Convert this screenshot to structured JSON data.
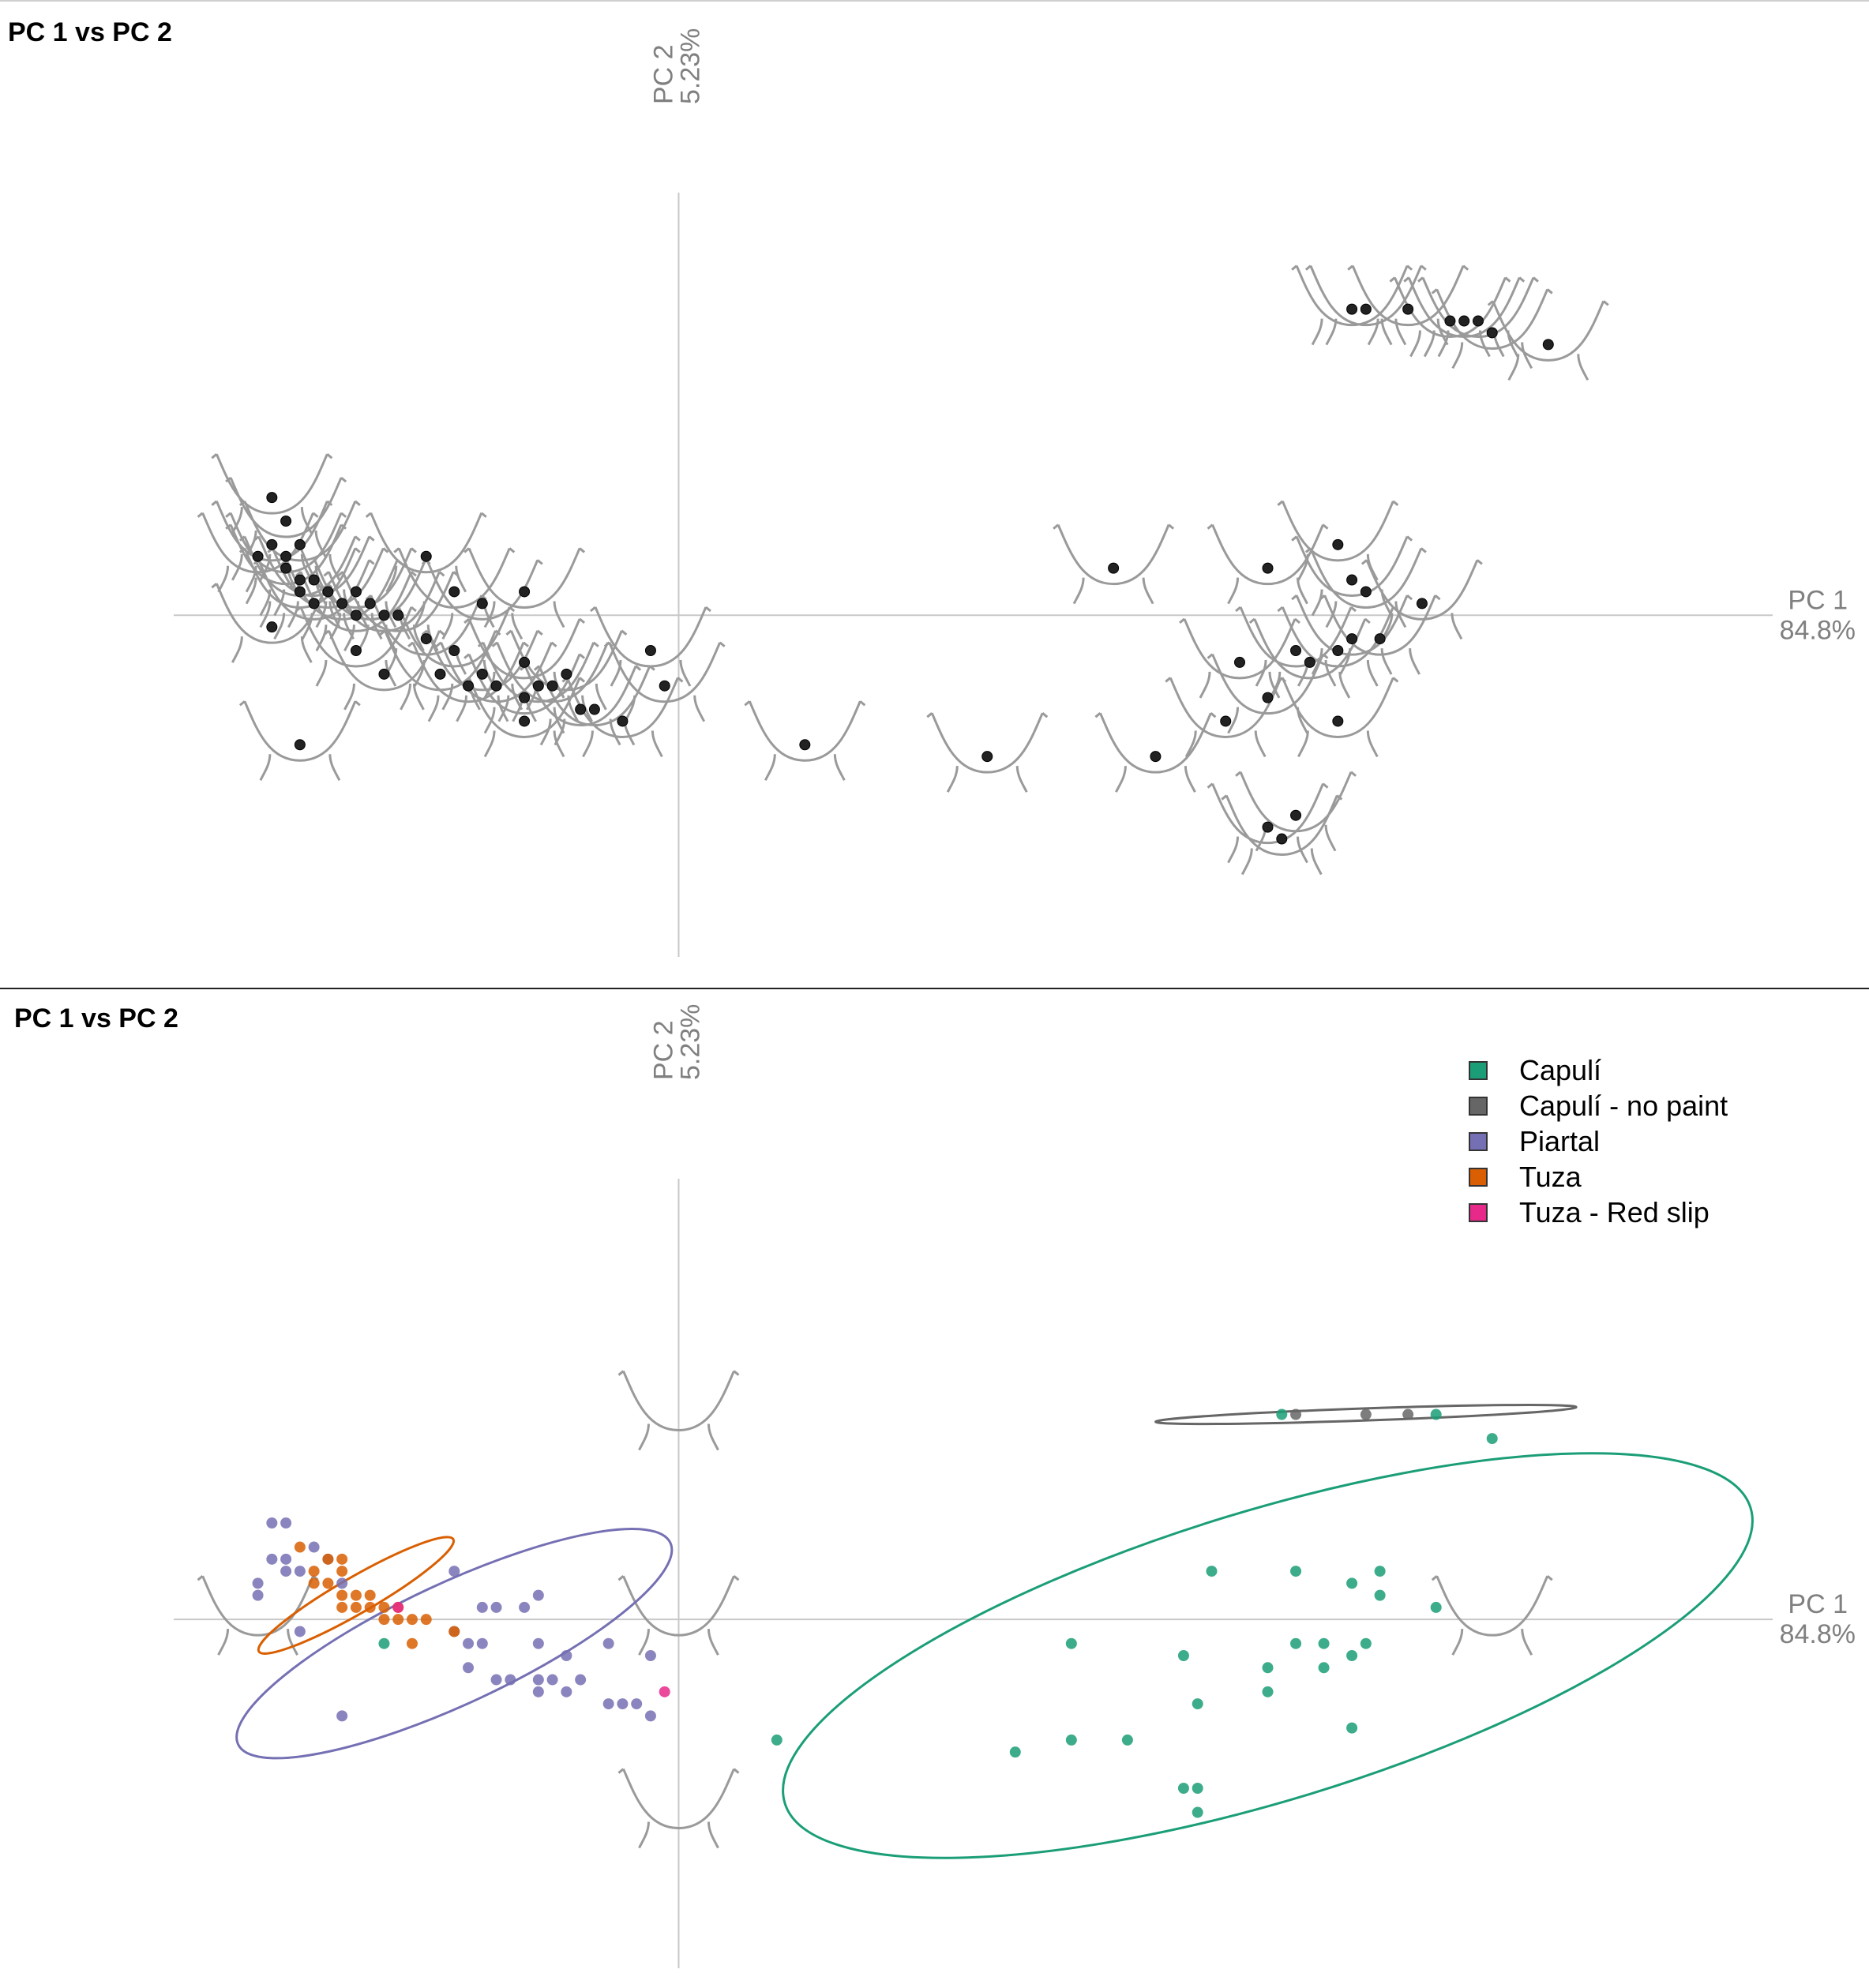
{
  "panels": {
    "top": {
      "title": "PC 1 vs PC 2"
    },
    "bottom": {
      "title": "PC 1 vs PC 2"
    }
  },
  "colors": {
    "axis": "#c8c8c8",
    "axis_text": "#808080",
    "outline": "#9a9a9a",
    "point": "#222222"
  },
  "chart_data": [
    {
      "type": "scatter",
      "title": "PC 1 vs PC 2",
      "xlabel": "PC 1",
      "xpct": "84.8%",
      "ylabel": "PC 2",
      "ypct": "5.23%",
      "xlim": [
        -0.36,
        0.78
      ],
      "ylim": [
        -0.25,
        0.3
      ],
      "grid": false,
      "points_with_outlines": [
        [
          -0.29,
          0.1
        ],
        [
          -0.28,
          0.08
        ],
        [
          -0.3,
          0.05
        ],
        [
          -0.28,
          0.05
        ],
        [
          -0.29,
          0.06
        ],
        [
          -0.27,
          0.06
        ],
        [
          -0.28,
          0.04
        ],
        [
          -0.27,
          0.03
        ],
        [
          -0.26,
          0.03
        ],
        [
          -0.27,
          0.02
        ],
        [
          -0.26,
          0.01
        ],
        [
          -0.25,
          0.02
        ],
        [
          -0.24,
          0.01
        ],
        [
          -0.23,
          0.02
        ],
        [
          -0.22,
          0.01
        ],
        [
          -0.23,
          0.0
        ],
        [
          -0.21,
          0.0
        ],
        [
          -0.2,
          -0.0
        ],
        [
          -0.29,
          -0.01
        ],
        [
          -0.18,
          0.05
        ],
        [
          -0.16,
          0.02
        ],
        [
          -0.14,
          0.01
        ],
        [
          -0.11,
          0.02
        ],
        [
          -0.23,
          -0.03
        ],
        [
          -0.18,
          -0.02
        ],
        [
          -0.16,
          -0.03
        ],
        [
          -0.14,
          -0.05
        ],
        [
          -0.17,
          -0.05
        ],
        [
          -0.21,
          -0.05
        ],
        [
          -0.11,
          -0.04
        ],
        [
          -0.08,
          -0.05
        ],
        [
          -0.02,
          -0.03
        ],
        [
          -0.01,
          -0.06
        ],
        [
          -0.15,
          -0.06
        ],
        [
          -0.13,
          -0.06
        ],
        [
          -0.11,
          -0.07
        ],
        [
          -0.09,
          -0.06
        ],
        [
          -0.1,
          -0.06
        ],
        [
          -0.06,
          -0.08
        ],
        [
          -0.04,
          -0.09
        ],
        [
          -0.11,
          -0.09
        ],
        [
          -0.07,
          -0.08
        ],
        [
          -0.27,
          -0.11
        ],
        [
          0.09,
          -0.11
        ],
        [
          0.22,
          -0.12
        ],
        [
          0.34,
          -0.12
        ],
        [
          0.31,
          0.04
        ],
        [
          0.42,
          0.04
        ],
        [
          0.47,
          0.06
        ],
        [
          0.48,
          0.03
        ],
        [
          0.53,
          0.01
        ],
        [
          0.49,
          0.02
        ],
        [
          0.4,
          -0.04
        ],
        [
          0.44,
          -0.03
        ],
        [
          0.45,
          -0.04
        ],
        [
          0.47,
          -0.03
        ],
        [
          0.48,
          -0.02
        ],
        [
          0.5,
          -0.02
        ],
        [
          0.39,
          -0.09
        ],
        [
          0.42,
          -0.07
        ],
        [
          0.47,
          -0.09
        ],
        [
          0.42,
          -0.18
        ],
        [
          0.43,
          -0.19
        ],
        [
          0.44,
          -0.17
        ],
        [
          0.48,
          0.26
        ],
        [
          0.49,
          0.26
        ],
        [
          0.52,
          0.26
        ],
        [
          0.55,
          0.25
        ],
        [
          0.56,
          0.25
        ],
        [
          0.57,
          0.25
        ],
        [
          0.58,
          0.24
        ],
        [
          0.62,
          0.23
        ]
      ]
    },
    {
      "type": "scatter",
      "title": "PC 1 vs PC 2",
      "xlabel": "PC 1",
      "xpct": "84.8%",
      "ylabel": "PC 2",
      "ypct": "5.23%",
      "xlim": [
        -0.36,
        0.78
      ],
      "ylim": [
        -0.25,
        0.3
      ],
      "grid": false,
      "legend_position": "top-right",
      "series": [
        {
          "name": "Capulí",
          "color": "#1b9e77",
          "points": [
            [
              0.38,
              0.04
            ],
            [
              0.44,
              0.04
            ],
            [
              0.48,
              0.03
            ],
            [
              0.5,
              0.04
            ],
            [
              0.5,
              0.02
            ],
            [
              0.54,
              0.01
            ],
            [
              0.28,
              -0.02
            ],
            [
              0.36,
              -0.03
            ],
            [
              0.44,
              -0.02
            ],
            [
              0.46,
              -0.02
            ],
            [
              0.42,
              -0.04
            ],
            [
              0.37,
              -0.07
            ],
            [
              0.42,
              -0.06
            ],
            [
              0.48,
              -0.09
            ],
            [
              0.48,
              -0.03
            ],
            [
              0.49,
              -0.02
            ],
            [
              0.46,
              -0.04
            ],
            [
              0.24,
              -0.11
            ],
            [
              0.32,
              -0.1
            ],
            [
              0.28,
              -0.1
            ],
            [
              0.36,
              -0.14
            ],
            [
              0.37,
              -0.14
            ],
            [
              0.37,
              -0.16
            ],
            [
              0.07,
              -0.1
            ],
            [
              0.58,
              0.15
            ],
            [
              0.43,
              0.17
            ],
            [
              0.54,
              0.17
            ],
            [
              -0.21,
              -0.02
            ]
          ]
        },
        {
          "name": "Capulí - no paint",
          "color": "#666666",
          "points": [
            [
              0.44,
              0.17
            ],
            [
              0.49,
              0.17
            ],
            [
              0.52,
              0.17
            ]
          ]
        },
        {
          "name": "Piartal",
          "color": "#7570b3",
          "points": [
            [
              -0.29,
              0.08
            ],
            [
              -0.28,
              0.08
            ],
            [
              -0.29,
              0.05
            ],
            [
              -0.28,
              0.04
            ],
            [
              -0.28,
              0.05
            ],
            [
              -0.25,
              0.05
            ],
            [
              -0.26,
              0.06
            ],
            [
              -0.27,
              0.04
            ],
            [
              -0.24,
              0.03
            ],
            [
              -0.3,
              0.03
            ],
            [
              -0.3,
              0.02
            ],
            [
              -0.27,
              -0.01
            ],
            [
              -0.16,
              0.04
            ],
            [
              -0.14,
              0.01
            ],
            [
              -0.13,
              0.01
            ],
            [
              -0.1,
              0.02
            ],
            [
              -0.11,
              0.01
            ],
            [
              -0.16,
              -0.01
            ],
            [
              -0.15,
              -0.02
            ],
            [
              -0.14,
              -0.02
            ],
            [
              -0.1,
              -0.02
            ],
            [
              -0.08,
              -0.03
            ],
            [
              -0.05,
              -0.02
            ],
            [
              -0.02,
              -0.03
            ],
            [
              -0.15,
              -0.04
            ],
            [
              -0.13,
              -0.05
            ],
            [
              -0.12,
              -0.05
            ],
            [
              -0.09,
              -0.05
            ],
            [
              -0.07,
              -0.05
            ],
            [
              -0.1,
              -0.05
            ],
            [
              -0.1,
              -0.06
            ],
            [
              -0.05,
              -0.07
            ],
            [
              -0.08,
              -0.06
            ],
            [
              -0.03,
              -0.07
            ],
            [
              -0.04,
              -0.07
            ],
            [
              -0.02,
              -0.08
            ],
            [
              -0.24,
              -0.08
            ]
          ]
        },
        {
          "name": "Tuza",
          "color": "#d95f02",
          "points": [
            [
              -0.27,
              0.06
            ],
            [
              -0.26,
              0.04
            ],
            [
              -0.25,
              0.05
            ],
            [
              -0.24,
              0.05
            ],
            [
              -0.24,
              0.04
            ],
            [
              -0.25,
              0.03
            ],
            [
              -0.24,
              0.02
            ],
            [
              -0.23,
              0.02
            ],
            [
              -0.22,
              0.02
            ],
            [
              -0.24,
              0.01
            ],
            [
              -0.22,
              0.01
            ],
            [
              -0.21,
              0.01
            ],
            [
              -0.2,
              0.01
            ],
            [
              -0.19,
              0.0
            ],
            [
              -0.2,
              0.0
            ],
            [
              -0.21,
              0.0
            ],
            [
              -0.18,
              0.0
            ],
            [
              -0.26,
              0.03
            ],
            [
              -0.23,
              0.01
            ],
            [
              -0.16,
              -0.01
            ],
            [
              -0.19,
              -0.02
            ]
          ]
        },
        {
          "name": "Tuza - Red slip",
          "color": "#e7298a",
          "points": [
            [
              -0.2,
              0.01
            ],
            [
              -0.01,
              -0.06
            ]
          ]
        }
      ],
      "ellipses": [
        {
          "series": "Capulí",
          "cx": 0.42,
          "cy": -0.03,
          "rx": 0.36,
          "ry": 0.12,
          "angle_deg": -17
        },
        {
          "series": "Capulí - no paint",
          "cx": 0.49,
          "cy": 0.17,
          "rx": 0.15,
          "ry": 0.005,
          "angle_deg": -2
        },
        {
          "series": "Piartal",
          "cx": -0.16,
          "cy": -0.02,
          "rx": 0.17,
          "ry": 0.05,
          "angle_deg": -25
        },
        {
          "series": "Tuza",
          "cx": -0.23,
          "cy": 0.02,
          "rx": 0.08,
          "ry": 0.015,
          "angle_deg": -30
        }
      ],
      "reference_outlines": [
        [
          0.0,
          0.17
        ],
        [
          0.0,
          0.0
        ],
        [
          0.0,
          -0.16
        ],
        [
          -0.3,
          0.0
        ],
        [
          0.58,
          0.0
        ]
      ]
    }
  ]
}
